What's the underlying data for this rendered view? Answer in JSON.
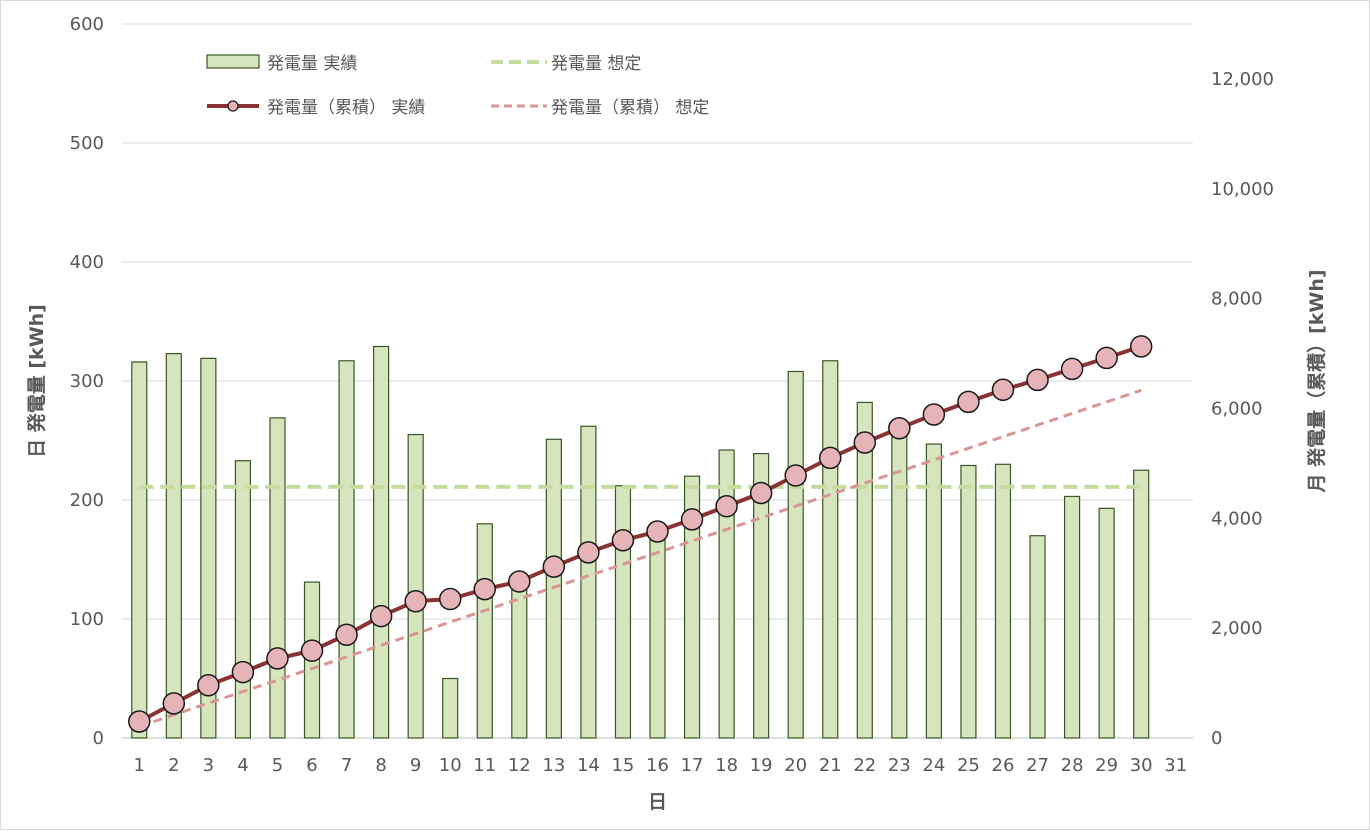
{
  "chart_data": {
    "type": "bar",
    "categories": [
      "1",
      "2",
      "3",
      "4",
      "5",
      "6",
      "7",
      "8",
      "9",
      "10",
      "11",
      "12",
      "13",
      "14",
      "15",
      "16",
      "17",
      "18",
      "19",
      "20",
      "21",
      "22",
      "23",
      "24",
      "25",
      "26",
      "27",
      "28",
      "29",
      "30",
      "31"
    ],
    "xlabel": "日",
    "ylabel_left": "日 発電量 [kWh]",
    "ylabel_right": "月 発電量（累積）[kWh]",
    "ylim_left": [
      0,
      600
    ],
    "yticks_left": [
      "0",
      "100",
      "200",
      "300",
      "400",
      "500",
      "600"
    ],
    "ylim_right": [
      0,
      13000
    ],
    "yticks_right": [
      "0",
      "2,000",
      "4,000",
      "6,000",
      "8,000",
      "10,000",
      "12,000"
    ],
    "grid": true,
    "legend_position": "top-left",
    "series": [
      {
        "name": "発電量 実績",
        "type": "bar",
        "axis": "left",
        "color": "#d6e5bd",
        "edge_color": "#385723",
        "values": [
          316,
          323,
          319,
          233,
          269,
          131,
          317,
          329,
          255,
          50,
          180,
          137,
          251,
          262,
          212,
          172,
          220,
          242,
          239,
          308,
          317,
          282,
          255,
          247,
          229,
          230,
          170,
          203,
          193,
          225,
          null
        ]
      },
      {
        "name": "発電量 想定",
        "type": "line",
        "axis": "left",
        "style": "dashed",
        "color": "#c5dc9d",
        "values": [
          211,
          211,
          211,
          211,
          211,
          211,
          211,
          211,
          211,
          211,
          211,
          211,
          211,
          211,
          211,
          211,
          211,
          211,
          211,
          211,
          211,
          211,
          211,
          211,
          211,
          211,
          211,
          211,
          211,
          211,
          null
        ]
      },
      {
        "name": "発電量（累積） 実績",
        "type": "line",
        "axis": "right",
        "style": "solid-marker",
        "color": "#8b3333",
        "marker_color": "#e6b4b8",
        "values": [
          300,
          630,
          960,
          1200,
          1450,
          1590,
          1880,
          2220,
          2490,
          2530,
          2710,
          2850,
          3120,
          3380,
          3600,
          3760,
          3980,
          4220,
          4460,
          4780,
          5100,
          5380,
          5640,
          5890,
          6120,
          6340,
          6520,
          6720,
          6920,
          7130,
          null
        ]
      },
      {
        "name": "発電量（累積） 想定",
        "type": "line",
        "axis": "right",
        "style": "dashed",
        "color": "#da9694",
        "values": [
          211,
          422,
          633,
          844,
          1055,
          1266,
          1477,
          1688,
          1899,
          2110,
          2321,
          2532,
          2743,
          2954,
          3165,
          3376,
          3587,
          3798,
          4009,
          4220,
          4431,
          4642,
          4853,
          5064,
          5275,
          5486,
          5697,
          5908,
          6119,
          6330,
          null
        ]
      }
    ]
  }
}
